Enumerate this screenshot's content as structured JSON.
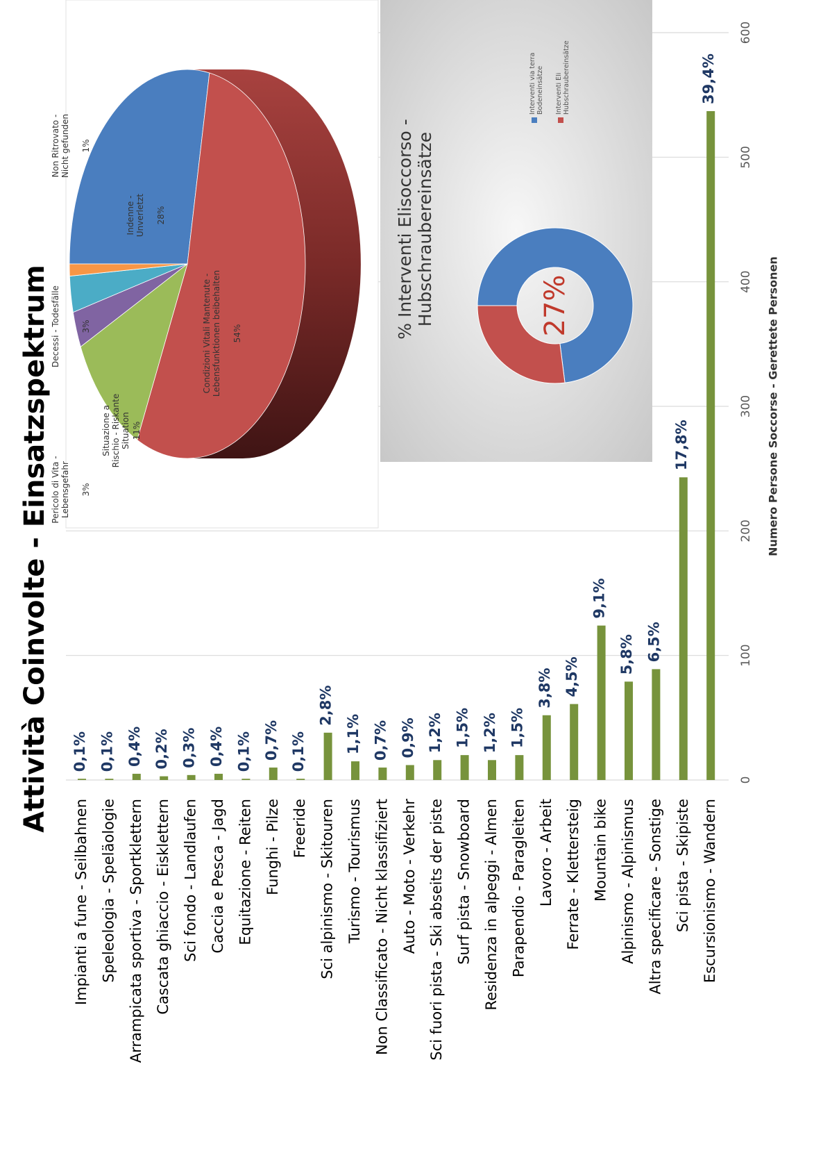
{
  "chart_data": [
    {
      "type": "bar",
      "title": "Attività Coinvolte - Einsatzspektrum",
      "x_label": "Numero Persone Soccorse - Gerettete Personen",
      "categories": [
        "Impianti a fune - Seilbahnen",
        "Speleologia - Speläologie",
        "Arrampicata sportiva - Sportklettern",
        "Cascata ghiaccio - Eisklettern",
        "Sci fondo - Landlaufen",
        "Caccia e Pesca - Jagd",
        "Equitazione - Reiten",
        "Funghi - Pilze",
        "Freeride",
        "Sci alpinismo - Skitouren",
        "Turismo - Tourismus",
        "Non Classificato - Nicht klassifiziert",
        "Auto - Moto - Verkehr",
        "Sci fuori pista - Ski abseits der piste",
        "Surf pista - Snowboard",
        "Residenza in alpeggi - Almen",
        "Parapendio - Paragleiten",
        "Lavoro - Arbeit",
        "Ferrate - Klettersteig",
        "Mountain bike",
        "Alpinismo - Alpinismus",
        "Altra specificare - Sonstige",
        "Sci pista - Skipiste",
        "Escursionismo - Wandern"
      ],
      "values": [
        1,
        1,
        5,
        3,
        4,
        5,
        1,
        10,
        1,
        38,
        15,
        10,
        12,
        16,
        20,
        16,
        20,
        52,
        61,
        124,
        79,
        89,
        243,
        537
      ],
      "value_labels": [
        "0,1%",
        "0,1%",
        "0,4%",
        "0,2%",
        "0,3%",
        "0,4%",
        "0,1%",
        "0,7%",
        "0,1%",
        "2,8%",
        "1,1%",
        "0,7%",
        "0,9%",
        "1,2%",
        "1,5%",
        "1,2%",
        "1,5%",
        "3,8%",
        "4,5%",
        "9,1%",
        "5,8%",
        "6,5%",
        "17,8%",
        "39,4%"
      ],
      "color": "#77933c",
      "xlim": [
        0,
        600
      ],
      "xticks": [
        0,
        100,
        200,
        300,
        400,
        500,
        600
      ],
      "grid": true
    },
    {
      "type": "pie",
      "categories": [
        "Indenne - Unverletzt",
        "Condizioni Vitali Mantenute - Lebensfunktionen beibehalten",
        "Situazione a Rischio - Riskante Situation",
        "Pericolo di Vita - Lebensgefahr",
        "Decessi - Todesfälle",
        "Non Ritrovato - Nicht gefunden"
      ],
      "values": [
        28,
        54,
        11,
        3,
        3,
        1
      ],
      "value_labels": [
        "28%",
        "54%",
        "11%",
        "3%",
        "3%",
        "1%"
      ],
      "colors": [
        "#4a7ebf",
        "#c2504d",
        "#9bbb59",
        "#8064a2",
        "#4bacc6",
        "#f79646"
      ]
    },
    {
      "type": "donut",
      "title": "% Interventi Elisoccorso - Hubschraubereinsätze",
      "categories": [
        "Interventi via terra Bodeneinsätze",
        "Interventi Eli Hubschraubereinsätze"
      ],
      "values": [
        73,
        27
      ],
      "value_labels": [
        null,
        "27%"
      ],
      "colors": [
        "#4a7ebf",
        "#c2504d"
      ]
    }
  ]
}
